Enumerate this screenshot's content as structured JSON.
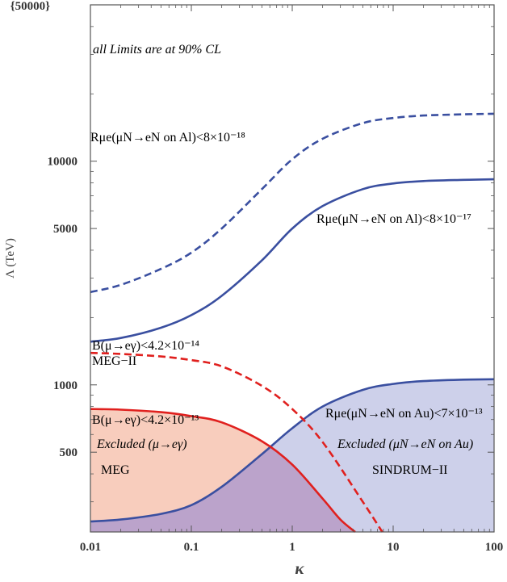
{
  "chart_data": {
    "type": "line",
    "title": "",
    "xlabel": "κ",
    "ylabel": "Λ (TeV)",
    "xscale": "log",
    "yscale": "log",
    "xlim": [
      0.01,
      100
    ],
    "ylim": [
      220,
      50000
    ],
    "x_ticks": [
      0.01,
      0.1,
      1,
      10,
      100
    ],
    "x_tick_labels": [
      "0.01",
      "0.1",
      "1",
      "10",
      "100"
    ],
    "y_ticks": [
      500,
      1000,
      5000,
      10000
    ],
    "y_tick_labels": [
      "500",
      "1000",
      "5000",
      "10000"
    ],
    "y_top_label": "{50000}",
    "grid": false,
    "series": [
      {
        "name": "Rμe(μN→eN on Al)<8×10⁻¹⁸",
        "style": "dashed",
        "color": "#3a4fa0",
        "x": [
          0.01,
          0.02,
          0.05,
          0.1,
          0.2,
          0.5,
          1,
          2,
          5,
          10,
          20,
          50,
          100
        ],
        "y": [
          2600,
          2800,
          3300,
          3900,
          5000,
          7500,
          10200,
          12600,
          14800,
          15600,
          16000,
          16200,
          16300
        ]
      },
      {
        "name": "Rμe(μN→eN on Al)<8×10⁻¹⁷",
        "style": "solid",
        "color": "#3a4fa0",
        "x": [
          0.01,
          0.02,
          0.05,
          0.1,
          0.2,
          0.5,
          1,
          2,
          5,
          10,
          20,
          50,
          100
        ],
        "y": [
          1560,
          1620,
          1800,
          2050,
          2500,
          3600,
          5000,
          6300,
          7500,
          7950,
          8150,
          8250,
          8300
        ]
      },
      {
        "name": "Rμe(μN→eN on Au)<7×10⁻¹³",
        "style": "solid",
        "color": "#3a4fa0",
        "fill": "#cdd0ea",
        "x": [
          0.01,
          0.02,
          0.05,
          0.1,
          0.2,
          0.5,
          1,
          2,
          5,
          10,
          20,
          50,
          100
        ],
        "y": [
          245,
          250,
          265,
          290,
          350,
          490,
          640,
          800,
          950,
          1010,
          1040,
          1055,
          1060
        ]
      },
      {
        "name": "B(μ→eγ)<4.2×10⁻¹³",
        "style": "solid",
        "color": "#e0201e",
        "fill": "#f8cdbd",
        "x": [
          0.01,
          0.02,
          0.05,
          0.1,
          0.2,
          0.5,
          1,
          2,
          3,
          4.2
        ],
        "y": [
          780,
          775,
          755,
          725,
          680,
          560,
          440,
          310,
          250,
          220
        ]
      },
      {
        "name": "B(μ→eγ)<4.2×10⁻¹⁴",
        "style": "dashed",
        "color": "#e0201e",
        "x": [
          0.01,
          0.02,
          0.05,
          0.1,
          0.2,
          0.5,
          1,
          2,
          5,
          7.8
        ],
        "y": [
          1390,
          1375,
          1340,
          1290,
          1210,
          990,
          780,
          555,
          300,
          220
        ]
      }
    ],
    "annotations": {
      "cl_note": "all Limits are at 90% CL",
      "al_dashed_label": "Rμe(μN→eN on Al)<8×10⁻¹⁸",
      "al_solid_label": "Rμe(μN→eN on Al)<8×10⁻¹⁷",
      "meg2_line1": "B(μ→eγ)<4.2×10⁻¹⁴",
      "meg2_line2": "MEG−II",
      "meg_line1": "B(μ→eγ)<4.2×10⁻¹³",
      "meg_line2": "Excluded (μ→eγ)",
      "meg_line3": "MEG",
      "au_line1": "Rμe(μN→eN on Au)<7×10⁻¹³",
      "au_line2": "Excluded (μN→eN on Au)",
      "au_line3": "SINDRUM−II"
    }
  }
}
